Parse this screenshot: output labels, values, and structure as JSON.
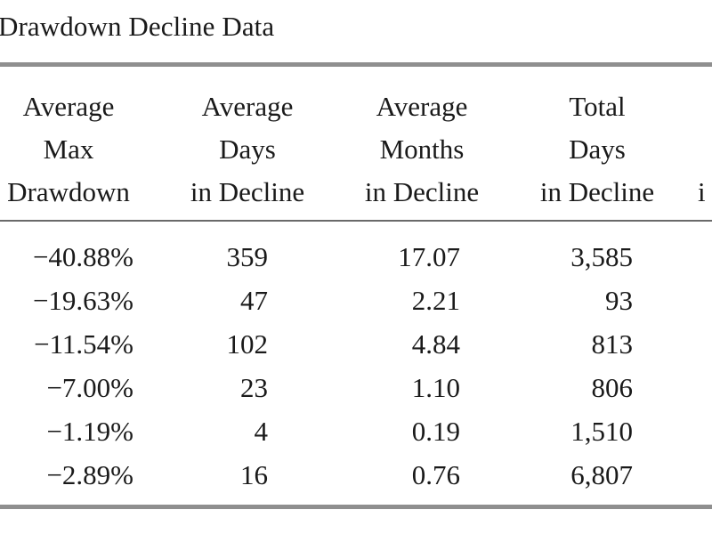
{
  "title": "Drawdown Decline Data",
  "columns": [
    {
      "lines": [
        "Average",
        "Max",
        "Drawdown"
      ]
    },
    {
      "lines": [
        "Average",
        "Days",
        "in Decline"
      ]
    },
    {
      "lines": [
        "Average",
        "Months",
        "in Decline"
      ]
    },
    {
      "lines": [
        "Total",
        "Days",
        "in Decline"
      ]
    },
    {
      "lines": [
        "",
        "",
        "i"
      ]
    }
  ],
  "rows": [
    [
      "−40.88%",
      "359",
      "17.07",
      "3,585"
    ],
    [
      "−19.63%",
      "47",
      "2.21",
      "93"
    ],
    [
      "−11.54%",
      "102",
      "4.84",
      "813"
    ],
    [
      "−7.00%",
      "23",
      "1.10",
      "806"
    ],
    [
      "−1.19%",
      "4",
      "0.19",
      "1,510"
    ],
    [
      "−2.89%",
      "16",
      "0.76",
      "6,807"
    ]
  ]
}
